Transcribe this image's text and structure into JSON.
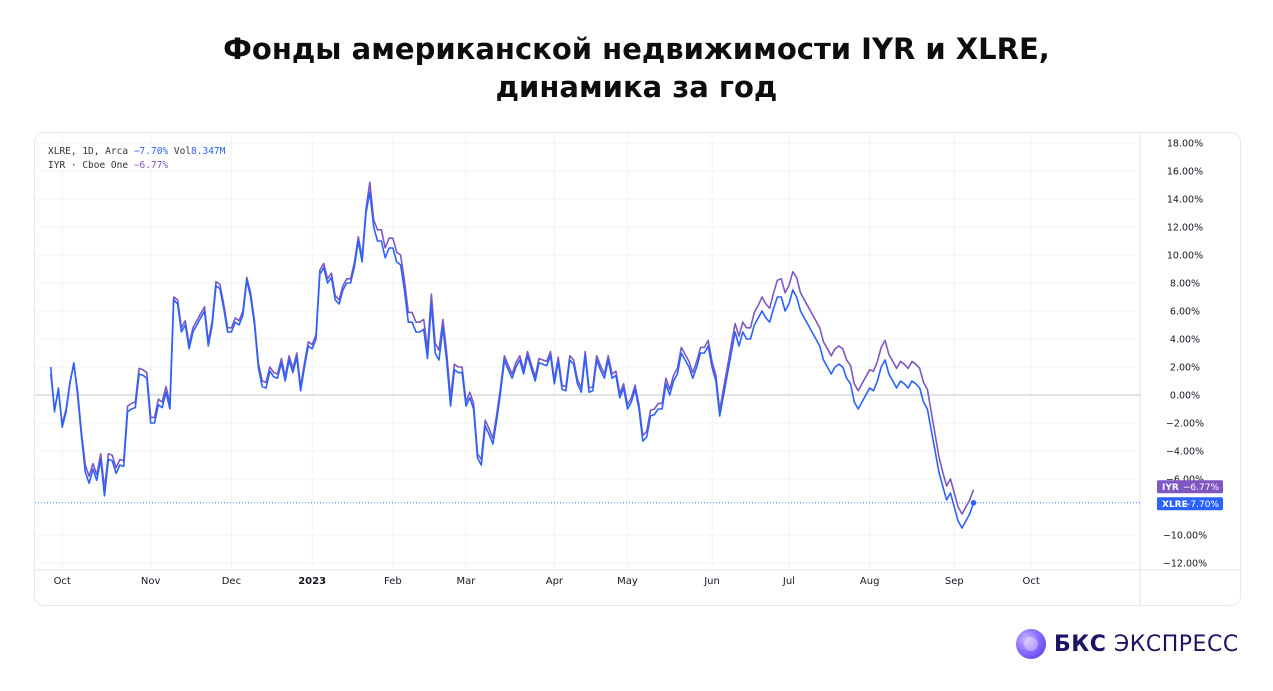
{
  "title_line1": "Фонды американской недвижимости IYR и XLRE,",
  "title_line2": "динамика за год",
  "legend": {
    "xlre_prefix": "XLRE, 1D, Arca",
    "xlre_change": "−7.70%",
    "xlre_vol_label": "Vol",
    "xlre_vol": "8.347M",
    "iyr_prefix": "IYR · Cboe One",
    "iyr_change": "−6.77%"
  },
  "brand": {
    "bold": "БКС",
    "rest": "ЭКСПРЕСС"
  },
  "chart_data": {
    "type": "line",
    "ylim": [
      -12,
      18
    ],
    "y_ticks": [
      18,
      16,
      14,
      12,
      10,
      8,
      6,
      4,
      2,
      0,
      -2,
      -4,
      -6,
      -10,
      -12
    ],
    "y_tick_labels": [
      "18.00%",
      "16.00%",
      "14.00%",
      "12.00%",
      "10.00%",
      "8.00%",
      "6.00%",
      "4.00%",
      "2.00%",
      "0.00%",
      "−2.00%",
      "−4.00%",
      "−6.00%",
      "−10.00%",
      "−12.00%"
    ],
    "x_labels": [
      {
        "label": "Oct",
        "at": 3,
        "bold": false
      },
      {
        "label": "Nov",
        "at": 26,
        "bold": false
      },
      {
        "label": "Dec",
        "at": 47,
        "bold": false
      },
      {
        "label": "2023",
        "at": 68,
        "bold": true
      },
      {
        "label": "Feb",
        "at": 89,
        "bold": false
      },
      {
        "label": "Mar",
        "at": 108,
        "bold": false
      },
      {
        "label": "Apr",
        "at": 131,
        "bold": false
      },
      {
        "label": "May",
        "at": 150,
        "bold": false
      },
      {
        "label": "Jun",
        "at": 172,
        "bold": false
      },
      {
        "label": "Jul",
        "at": 192,
        "bold": false
      },
      {
        "label": "Aug",
        "at": 213,
        "bold": false
      },
      {
        "label": "Sep",
        "at": 235,
        "bold": false
      },
      {
        "label": "Oct",
        "at": 255,
        "bold": false
      }
    ],
    "x_range": [
      -2,
      282
    ],
    "series": [
      {
        "name": "XLRE",
        "color": "#2962ff",
        "last_label": "XLRE",
        "last_value_label": "−7.70%",
        "last": -7.7,
        "values": [
          2.0,
          -1.2,
          0.5,
          -2.3,
          -1.2,
          0.8,
          2.3,
          0.0,
          -3.0,
          -5.5,
          -6.3,
          -5.3,
          -6.1,
          -4.6,
          -7.2,
          -4.6,
          -4.7,
          -5.6,
          -5.0,
          -5.1,
          -1.2,
          -1.0,
          -0.9,
          1.5,
          1.4,
          1.2,
          -2.0,
          -2.0,
          -0.7,
          -0.9,
          0.2,
          -1.0,
          6.8,
          6.5,
          4.5,
          5.0,
          3.3,
          4.5,
          5.0,
          5.5,
          6.0,
          3.5,
          5.0,
          7.8,
          7.6,
          6.2,
          4.5,
          4.5,
          5.2,
          5.0,
          5.7,
          8.2,
          7.0,
          5.0,
          2.0,
          0.6,
          0.5,
          1.7,
          1.3,
          1.2,
          2.3,
          1.0,
          2.5,
          1.6,
          2.7,
          0.3,
          2.0,
          3.5,
          3.3,
          4.0,
          8.6,
          9.1,
          8.0,
          8.4,
          6.8,
          6.5,
          7.5,
          8.0,
          8.0,
          9.2,
          11.0,
          9.5,
          13.0,
          14.5,
          12.0,
          11.0,
          11.0,
          9.8,
          10.5,
          10.5,
          9.5,
          9.3,
          7.5,
          5.2,
          5.2,
          4.5,
          4.5,
          4.7,
          2.6,
          6.5,
          3.0,
          2.5,
          4.8,
          2.4,
          -0.8,
          1.8,
          1.6,
          1.6,
          -0.8,
          -0.2,
          -1.0,
          -4.5,
          -5.0,
          -2.2,
          -2.8,
          -3.5,
          -1.8,
          0.2,
          2.5,
          1.8,
          1.2,
          2.0,
          2.5,
          1.5,
          2.8,
          1.9,
          1.0,
          2.3,
          2.2,
          2.1,
          2.8,
          0.8,
          2.4,
          0.4,
          0.3,
          2.5,
          2.2,
          0.8,
          0.2,
          2.8,
          0.2,
          0.3,
          2.5,
          1.8,
          1.2,
          2.5,
          1.2,
          1.4,
          -0.2,
          0.5,
          -1.0,
          -0.5,
          0.4,
          -1.0,
          -3.3,
          -3.0,
          -1.5,
          -1.4,
          -1.0,
          -1.0,
          0.8,
          0.0,
          1.0,
          1.5,
          3.0,
          2.5,
          2.0,
          1.2,
          2.0,
          3.0,
          3.0,
          3.5,
          2.0,
          1.0,
          -1.5,
          0.0,
          1.5,
          3.0,
          4.5,
          3.5,
          4.5,
          4.0,
          4.0,
          5.0,
          5.5,
          6.0,
          5.5,
          5.2,
          6.2,
          7.0,
          7.0,
          6.0,
          6.5,
          7.5,
          7.0,
          6.0,
          5.5,
          5.0,
          4.5,
          4.0,
          3.5,
          2.5,
          2.0,
          1.5,
          2.0,
          2.2,
          2.0,
          1.2,
          0.8,
          -0.5,
          -1.0,
          -0.5,
          0.0,
          0.5,
          0.3,
          1.0,
          2.0,
          2.5,
          1.5,
          1.0,
          0.5,
          1.0,
          0.8,
          0.5,
          1.0,
          0.8,
          0.5,
          -0.5,
          -1.0,
          -2.5,
          -4.0,
          -5.5,
          -6.5,
          -7.5,
          -7.0,
          -8.0,
          -9.0,
          -9.5,
          -9.0,
          -8.5,
          -7.7
        ],
        "values_offsets": [
          0
        ]
      },
      {
        "name": "IYR",
        "color": "#7e57c2",
        "last_label": "IYR",
        "last_value_label": "−6.77%",
        "last": -6.77,
        "values": [
          1.5,
          -1.0,
          0.3,
          -2.1,
          -1.0,
          0.9,
          2.2,
          0.3,
          -2.7,
          -5.0,
          -5.8,
          -4.9,
          -5.7,
          -4.2,
          -6.7,
          -4.2,
          -4.3,
          -5.2,
          -4.6,
          -4.7,
          -0.8,
          -0.6,
          -0.5,
          1.9,
          1.8,
          1.6,
          -1.6,
          -1.6,
          -0.3,
          -0.5,
          0.6,
          -0.6,
          7.0,
          6.8,
          4.8,
          5.3,
          3.6,
          4.8,
          5.3,
          5.8,
          6.3,
          3.8,
          5.3,
          8.1,
          7.9,
          6.5,
          4.8,
          4.8,
          5.5,
          5.3,
          6.0,
          8.4,
          7.3,
          5.3,
          2.3,
          1.0,
          0.9,
          2.0,
          1.6,
          1.5,
          2.6,
          1.3,
          2.8,
          1.9,
          3.0,
          0.6,
          2.3,
          3.8,
          3.6,
          4.3,
          8.9,
          9.4,
          8.3,
          8.7,
          7.1,
          6.8,
          7.8,
          8.3,
          8.3,
          9.5,
          11.3,
          9.8,
          13.3,
          15.2,
          12.5,
          11.8,
          11.8,
          10.5,
          11.2,
          11.2,
          10.2,
          10.0,
          8.2,
          5.9,
          5.9,
          5.2,
          5.2,
          5.4,
          3.3,
          7.2,
          3.7,
          3.2,
          5.4,
          3.0,
          -0.2,
          2.2,
          2.0,
          2.0,
          -0.5,
          0.2,
          -0.6,
          -4.2,
          -4.6,
          -1.8,
          -2.4,
          -3.1,
          -1.4,
          0.6,
          2.8,
          2.1,
          1.5,
          2.3,
          2.8,
          1.8,
          3.1,
          2.2,
          1.3,
          2.6,
          2.5,
          2.4,
          3.1,
          1.1,
          2.7,
          0.7,
          0.6,
          2.8,
          2.5,
          1.1,
          0.5,
          3.1,
          0.5,
          0.6,
          2.8,
          2.1,
          1.5,
          2.8,
          1.5,
          1.7,
          0.1,
          0.8,
          -0.7,
          -0.2,
          0.7,
          -0.7,
          -2.9,
          -2.6,
          -1.1,
          -1.0,
          -0.6,
          -0.6,
          1.2,
          0.4,
          1.4,
          1.9,
          3.4,
          2.9,
          2.4,
          1.6,
          2.4,
          3.4,
          3.4,
          3.9,
          2.4,
          1.4,
          -1.1,
          0.5,
          2.0,
          3.6,
          5.1,
          4.2,
          5.2,
          4.8,
          4.8,
          5.9,
          6.4,
          7.0,
          6.5,
          6.2,
          7.3,
          8.2,
          8.3,
          7.3,
          7.8,
          8.8,
          8.4,
          7.3,
          6.8,
          6.3,
          5.8,
          5.3,
          4.8,
          3.8,
          3.3,
          2.8,
          3.3,
          3.5,
          3.3,
          2.5,
          2.1,
          0.8,
          0.3,
          0.8,
          1.3,
          1.8,
          1.7,
          2.4,
          3.4,
          3.9,
          2.9,
          2.4,
          1.9,
          2.4,
          2.2,
          1.9,
          2.4,
          2.2,
          1.9,
          0.9,
          0.4,
          -1.2,
          -2.8,
          -4.4,
          -5.5,
          -6.5,
          -6.0,
          -7.0,
          -8.0,
          -8.5,
          -8.0,
          -7.5,
          -6.77
        ]
      }
    ]
  }
}
